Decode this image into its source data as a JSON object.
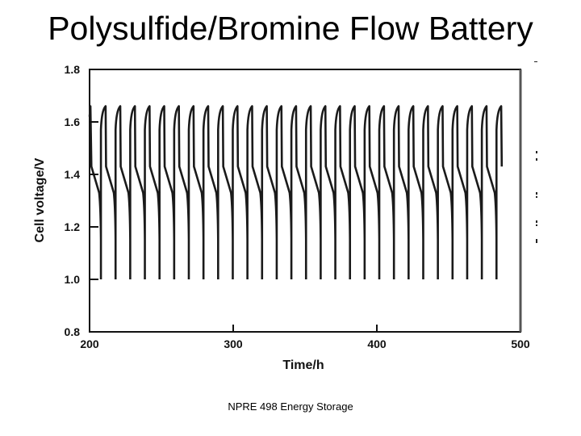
{
  "slide": {
    "title": "Polysulfide/Bromine Flow Battery",
    "footer": "NPRE 498 Energy Storage"
  },
  "chart_data": {
    "type": "line",
    "title": "",
    "xlabel": "Time/h",
    "ylabel": "Cell voltage/V",
    "xlim": [
      200,
      500
    ],
    "ylim": [
      0.8,
      1.8
    ],
    "x_ticks": [
      200,
      300,
      400,
      500
    ],
    "x_tick_labels": [
      "200",
      "300",
      "400",
      "500"
    ],
    "y_ticks": [
      0.8,
      1.0,
      1.2,
      1.4,
      1.6,
      1.8
    ],
    "y_tick_labels": [
      "0.8",
      "1.0",
      "1.2",
      "1.4",
      "1.6",
      "1.8"
    ],
    "grid": false,
    "legend": null,
    "description": "Repeated charge/discharge cycling of a polysulfide/bromine flow battery cell; ~28 cycles between 200 h and 500 h, each ~10.2 h long.",
    "cycle_period_h": 10.2,
    "first_cycle_end_h": 207.9,
    "num_cycles": 28,
    "cycle_profile": {
      "charge_start_V": 1.57,
      "charge_peak_V": 1.66,
      "discharge_initial_V": 1.43,
      "discharge_knee_V": 1.33,
      "discharge_cutoff_V": 1.0
    },
    "series": [
      {
        "name": "Cell voltage",
        "cycle_end_times_h": [
          207.9,
          218.1,
          228.3,
          238.5,
          248.7,
          258.9,
          269.1,
          279.3,
          289.5,
          299.7,
          309.9,
          320.1,
          330.3,
          340.5,
          350.7,
          360.9,
          371.1,
          381.3,
          391.5,
          401.7,
          411.9,
          422.1,
          432.3,
          442.5,
          452.7,
          462.9,
          473.1,
          483.3
        ],
        "peak_voltage_V": 1.66,
        "min_voltage_V": 1.0
      }
    ]
  }
}
